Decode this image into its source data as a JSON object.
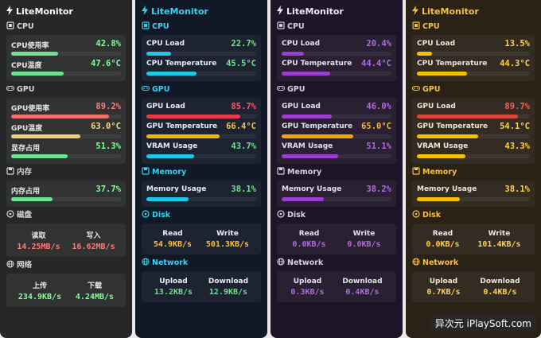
{
  "panels": [
    {
      "theme": {
        "text": "#e8e8e8",
        "title": "#ffffff",
        "head": "#d8d8d8",
        "val": "#7dff9a",
        "accent": "#6be28b"
      },
      "title": "LiteMonitor",
      "cpu": {
        "label": "CPU",
        "rows": [
          {
            "name": "CPU使用率",
            "value": "42.8%",
            "fraction": 0.428,
            "color": "#6be28b",
            "valcolor": "#7dff9a"
          },
          {
            "name": "CPU温度",
            "value": "47.6°C",
            "fraction": 0.476,
            "color": "#6be28b",
            "valcolor": "#7dff9a"
          }
        ]
      },
      "gpu": {
        "label": "GPU",
        "rows": [
          {
            "name": "GPU使用率",
            "value": "89.2%",
            "fraction": 0.892,
            "color": "#ef6f6f",
            "valcolor": "#ff7a7a"
          },
          {
            "name": "GPU温度",
            "value": "63.0°C",
            "fraction": 0.63,
            "color": "#f2cf73",
            "valcolor": "#ffd67a"
          },
          {
            "name": "显存占用",
            "value": "51.3%",
            "fraction": 0.513,
            "color": "#6be28b",
            "valcolor": "#7dff9a"
          }
        ]
      },
      "memory": {
        "label": "内存",
        "rows": [
          {
            "name": "内存占用",
            "value": "37.7%",
            "fraction": 0.377,
            "color": "#6be28b",
            "valcolor": "#7dff9a"
          }
        ]
      },
      "disk": {
        "label": "磁盘",
        "left_label": "读取",
        "left_value": "14.25MB/s",
        "right_label": "写入",
        "right_value": "16.62MB/s",
        "valcolor": "#ff7a7a"
      },
      "network": {
        "label": "网络",
        "left_label": "上传",
        "left_value": "234.9KB/s",
        "right_label": "下载",
        "right_value": "4.24MB/s",
        "valcolor": "#7dff9a"
      }
    },
    {
      "theme": {
        "text": "#e8ecf5",
        "title": "#38d3f0",
        "head": "#38d3f0",
        "accent": "#1ec8ea"
      },
      "title": "LiteMonitor",
      "cpu": {
        "label": "CPU",
        "rows": [
          {
            "name": "CPU Load",
            "value": "22.7%",
            "fraction": 0.227,
            "color": "#1ec8ea",
            "valcolor": "#6be28b"
          },
          {
            "name": "CPU Temperature",
            "value": "45.5°C",
            "fraction": 0.455,
            "color": "#1ec8ea",
            "valcolor": "#6be28b"
          }
        ]
      },
      "gpu": {
        "label": "GPU",
        "rows": [
          {
            "name": "GPU Load",
            "value": "85.7%",
            "fraction": 0.857,
            "color": "#e83a4d",
            "valcolor": "#ff5566"
          },
          {
            "name": "GPU Temperature",
            "value": "66.4°C",
            "fraction": 0.664,
            "color": "#f5b400",
            "valcolor": "#ffc233"
          },
          {
            "name": "VRAM Usage",
            "value": "43.7%",
            "fraction": 0.437,
            "color": "#1ec8ea",
            "valcolor": "#6be28b"
          }
        ]
      },
      "memory": {
        "label": "Memory",
        "rows": [
          {
            "name": "Memory Usage",
            "value": "38.1%",
            "fraction": 0.381,
            "color": "#1ec8ea",
            "valcolor": "#6be28b"
          }
        ]
      },
      "disk": {
        "label": "Disk",
        "left_label": "Read",
        "left_value": "54.9KB/s",
        "right_label": "Write",
        "right_value": "501.3KB/s",
        "valcolor": "#ffc233"
      },
      "network": {
        "label": "Network",
        "left_label": "Upload",
        "left_value": "13.2KB/s",
        "right_label": "Download",
        "right_value": "12.9KB/s",
        "valcolor": "#6be28b"
      }
    },
    {
      "theme": {
        "text": "#e6e0ee",
        "title": "#f0e8ff",
        "head": "#d9cde8",
        "accent": "#9a3fd0"
      },
      "title": "LiteMonitor",
      "cpu": {
        "label": "CPU",
        "rows": [
          {
            "name": "CPU Load",
            "value": "20.4%",
            "fraction": 0.204,
            "color": "#9a3fd0",
            "valcolor": "#b06ae0"
          },
          {
            "name": "CPU Temperature",
            "value": "44.4°C",
            "fraction": 0.444,
            "color": "#9a3fd0",
            "valcolor": "#b06ae0"
          }
        ]
      },
      "gpu": {
        "label": "GPU",
        "rows": [
          {
            "name": "GPU Load",
            "value": "46.0%",
            "fraction": 0.46,
            "color": "#9a3fd0",
            "valcolor": "#b06ae0"
          },
          {
            "name": "GPU Temperature",
            "value": "65.0°C",
            "fraction": 0.65,
            "color": "#f5a300",
            "valcolor": "#ffb42b"
          },
          {
            "name": "VRAM Usage",
            "value": "51.1%",
            "fraction": 0.511,
            "color": "#9a3fd0",
            "valcolor": "#b06ae0"
          }
        ]
      },
      "memory": {
        "label": "Memory",
        "rows": [
          {
            "name": "Memory Usage",
            "value": "38.2%",
            "fraction": 0.382,
            "color": "#9a3fd0",
            "valcolor": "#b06ae0"
          }
        ]
      },
      "disk": {
        "label": "Disk",
        "left_label": "Read",
        "left_value": "0.0KB/s",
        "right_label": "Write",
        "right_value": "0.0KB/s",
        "valcolor": "#b06ae0"
      },
      "network": {
        "label": "Network",
        "left_label": "Upload",
        "left_value": "0.3KB/s",
        "right_label": "Download",
        "right_value": "0.4KB/s",
        "valcolor": "#b06ae0"
      }
    },
    {
      "theme": {
        "text": "#f0e6d8",
        "title": "#f5c243",
        "head": "#f5c243",
        "accent": "#f5c000"
      },
      "title": "LiteMonitor",
      "cpu": {
        "label": "CPU",
        "rows": [
          {
            "name": "CPU Load",
            "value": "13.5%",
            "fraction": 0.135,
            "color": "#f5c000",
            "valcolor": "#ffd24a"
          },
          {
            "name": "CPU Temperature",
            "value": "44.3°C",
            "fraction": 0.443,
            "color": "#f5c000",
            "valcolor": "#ffd24a"
          }
        ]
      },
      "gpu": {
        "label": "GPU",
        "rows": [
          {
            "name": "GPU Load",
            "value": "89.7%",
            "fraction": 0.897,
            "color": "#d9473e",
            "valcolor": "#ff5b50"
          },
          {
            "name": "GPU Temperature",
            "value": "54.1°C",
            "fraction": 0.541,
            "color": "#f5c000",
            "valcolor": "#ffd24a"
          },
          {
            "name": "VRAM Usage",
            "value": "43.3%",
            "fraction": 0.433,
            "color": "#f5c000",
            "valcolor": "#ffd24a"
          }
        ]
      },
      "memory": {
        "label": "Memory",
        "rows": [
          {
            "name": "Memory Usage",
            "value": "38.1%",
            "fraction": 0.381,
            "color": "#f5c000",
            "valcolor": "#ffd24a"
          }
        ]
      },
      "disk": {
        "label": "Disk",
        "left_label": "Read",
        "left_value": "0.0KB/s",
        "right_label": "Write",
        "right_value": "101.4KB/s",
        "valcolor": "#ffd24a"
      },
      "network": {
        "label": "Network",
        "left_label": "Upload",
        "left_value": "0.7KB/s",
        "right_label": "Download",
        "right_value": "0.4KB/s",
        "valcolor": "#ffd24a"
      }
    }
  ],
  "watermark": "异次元 iPlaySoft.com"
}
